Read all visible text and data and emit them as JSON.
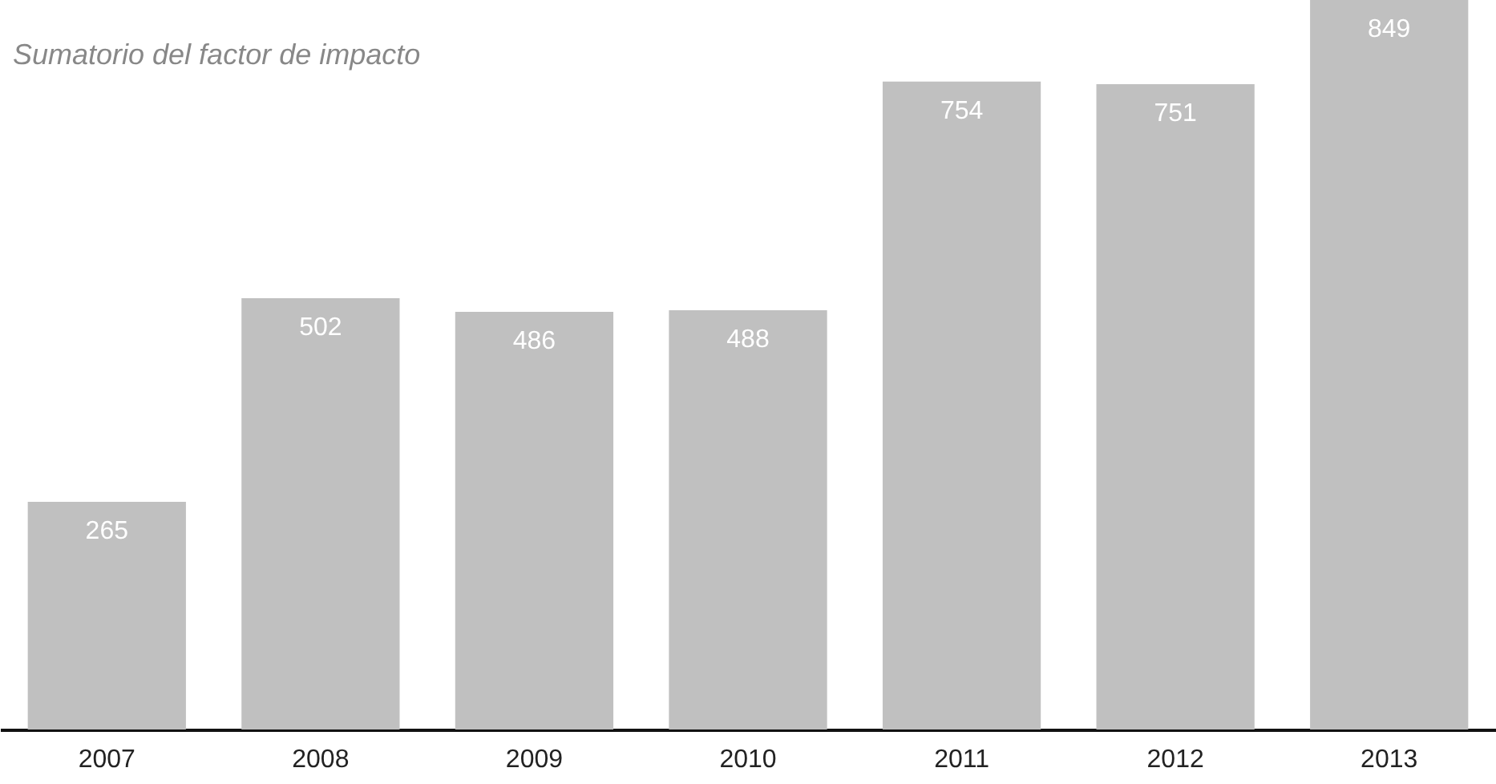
{
  "chart_data": {
    "type": "bar",
    "title": "Sumatorio del factor de impacto",
    "categories": [
      "2007",
      "2008",
      "2009",
      "2010",
      "2011",
      "2012",
      "2013"
    ],
    "values": [
      265,
      502,
      486,
      488,
      754,
      751,
      849
    ],
    "color": "#c0c0c0",
    "data_labels": true
  }
}
